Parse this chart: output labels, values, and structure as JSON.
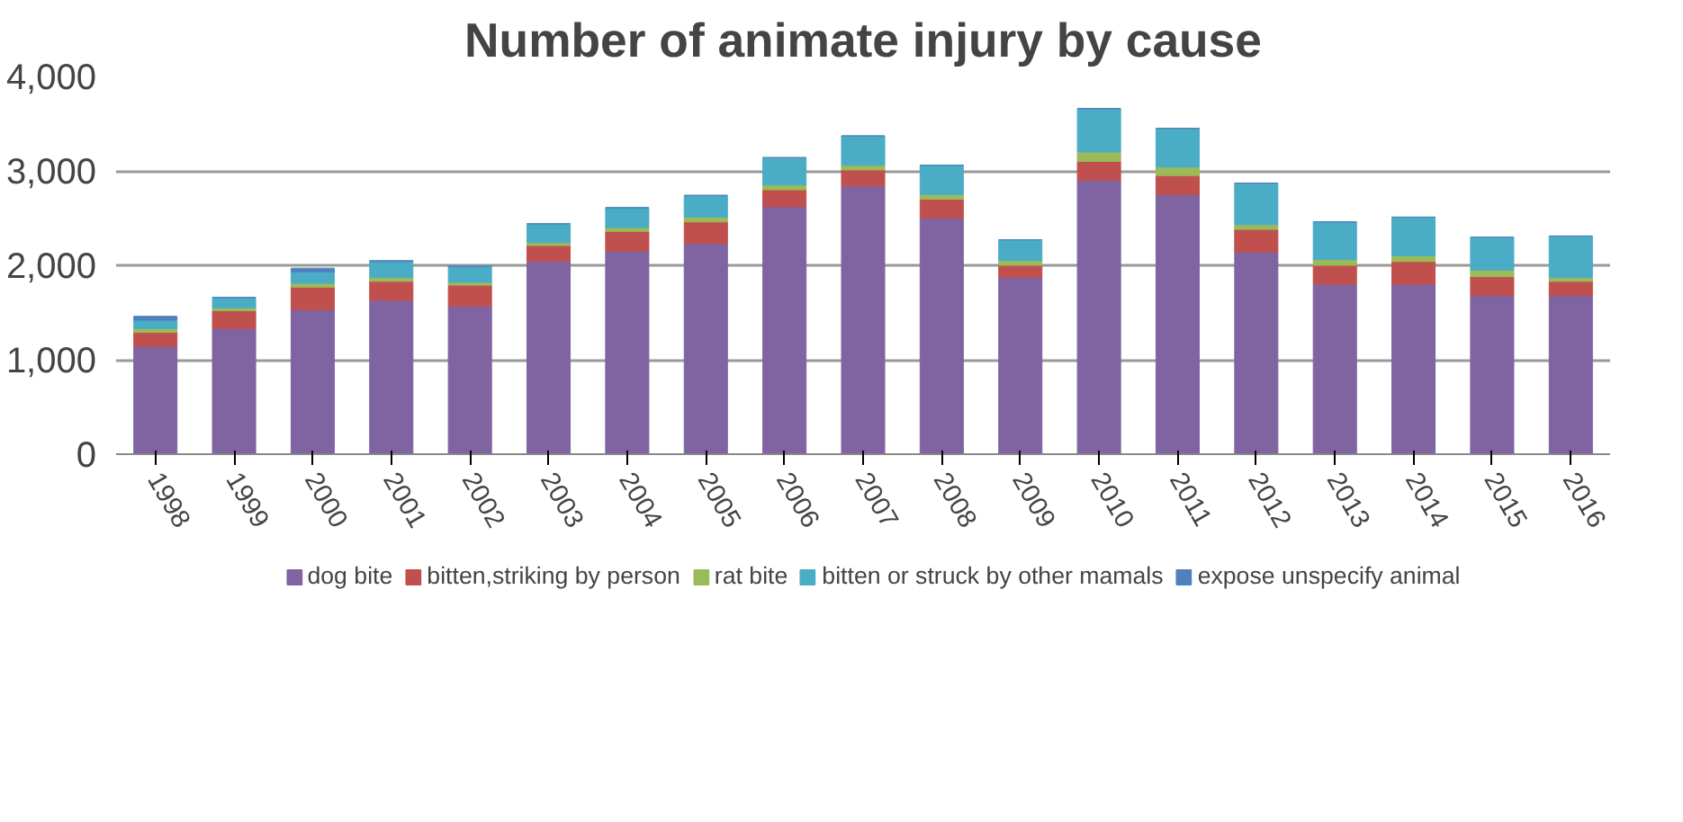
{
  "chart_data": {
    "type": "bar",
    "title": "Number of animate injury by cause",
    "stacked": true,
    "categories": [
      "1998",
      "1999",
      "2000",
      "2001",
      "2002",
      "2003",
      "2004",
      "2005",
      "2006",
      "2007",
      "2008",
      "2009",
      "2010",
      "2011",
      "2012",
      "2013",
      "2014",
      "2015",
      "2016"
    ],
    "series": [
      {
        "name": "dog bite",
        "color": "#8064a2",
        "values": [
          1140,
          1330,
          1530,
          1630,
          1570,
          2040,
          2150,
          2230,
          2620,
          2840,
          2500,
          1870,
          2900,
          2750,
          2140,
          1800,
          1800,
          1680,
          1680
        ]
      },
      {
        "name": "bitten,striking by person",
        "color": "#c0504d",
        "values": [
          150,
          190,
          240,
          200,
          220,
          170,
          210,
          230,
          180,
          170,
          200,
          130,
          200,
          200,
          240,
          200,
          240,
          200,
          150
        ]
      },
      {
        "name": "rat bite",
        "color": "#9bbb59",
        "values": [
          40,
          30,
          40,
          40,
          30,
          30,
          40,
          50,
          50,
          50,
          50,
          50,
          100,
          90,
          50,
          60,
          60,
          70,
          40
        ]
      },
      {
        "name": "bitten or struck by other mamals",
        "color": "#4bacc6",
        "values": [
          90,
          110,
          120,
          170,
          170,
          200,
          210,
          230,
          290,
          310,
          310,
          220,
          460,
          410,
          440,
          400,
          410,
          350,
          440
        ]
      },
      {
        "name": "expose unspecify animal",
        "color": "#4f81bd",
        "values": [
          40,
          0,
          40,
          10,
          0,
          0,
          0,
          0,
          0,
          0,
          0,
          0,
          0,
          0,
          0,
          0,
          0,
          0,
          0
        ]
      }
    ],
    "ylim": [
      0,
      4000
    ],
    "yticks": [
      0,
      {
        "value": 1000,
        "label": "1,000"
      },
      {
        "value": 2000,
        "label": "2,000"
      },
      {
        "value": 3000,
        "label": "3,000"
      },
      {
        "value": 4000,
        "label": "4,000"
      }
    ],
    "grid": "y",
    "legend": "bottom"
  }
}
